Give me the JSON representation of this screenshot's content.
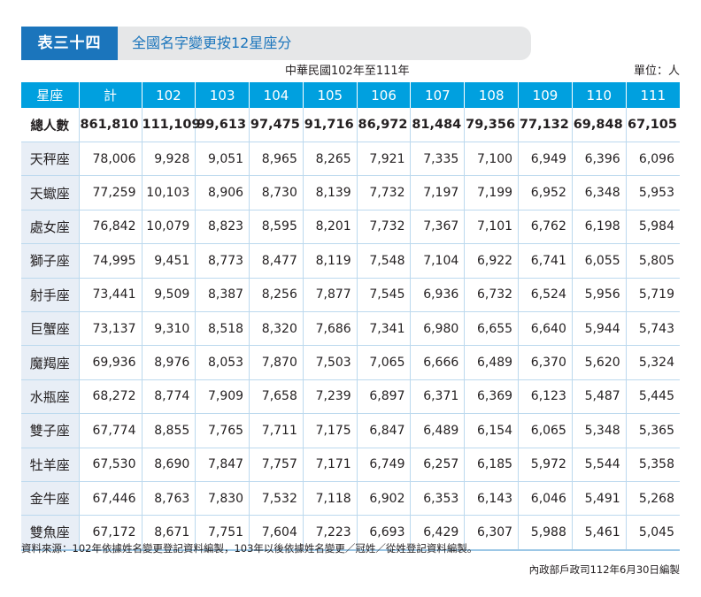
{
  "header": {
    "table_label": "表三十四",
    "title": "全國名字變更按12星座分",
    "subtitle": "中華民國102年至111年",
    "unit": "單位：人"
  },
  "colors": {
    "accent_blue": "#1b75bc",
    "header_cyan": "#00a0df",
    "row_label_bg": "#e8eef6",
    "title_bar_bg": "#e6e7e8"
  },
  "table": {
    "columns": [
      "星座",
      "計",
      "102",
      "103",
      "104",
      "105",
      "106",
      "107",
      "108",
      "109",
      "110",
      "111"
    ],
    "total_row": {
      "label": "總人數",
      "values": [
        "861,810",
        "111,109",
        "99,613",
        "97,475",
        "91,716",
        "86,972",
        "81,484",
        "79,356",
        "77,132",
        "69,848",
        "67,105"
      ]
    },
    "rows": [
      {
        "label": "天秤座",
        "values": [
          "78,006",
          "9,928",
          "9,051",
          "8,965",
          "8,265",
          "7,921",
          "7,335",
          "7,100",
          "6,949",
          "6,396",
          "6,096"
        ]
      },
      {
        "label": "天蠍座",
        "values": [
          "77,259",
          "10,103",
          "8,906",
          "8,730",
          "8,139",
          "7,732",
          "7,197",
          "7,199",
          "6,952",
          "6,348",
          "5,953"
        ]
      },
      {
        "label": "處女座",
        "values": [
          "76,842",
          "10,079",
          "8,823",
          "8,595",
          "8,201",
          "7,732",
          "7,367",
          "7,101",
          "6,762",
          "6,198",
          "5,984"
        ]
      },
      {
        "label": "獅子座",
        "values": [
          "74,995",
          "9,451",
          "8,773",
          "8,477",
          "8,119",
          "7,548",
          "7,104",
          "6,922",
          "6,741",
          "6,055",
          "5,805"
        ]
      },
      {
        "label": "射手座",
        "values": [
          "73,441",
          "9,509",
          "8,387",
          "8,256",
          "7,877",
          "7,545",
          "6,936",
          "6,732",
          "6,524",
          "5,956",
          "5,719"
        ]
      },
      {
        "label": "巨蟹座",
        "values": [
          "73,137",
          "9,310",
          "8,518",
          "8,320",
          "7,686",
          "7,341",
          "6,980",
          "6,655",
          "6,640",
          "5,944",
          "5,743"
        ]
      },
      {
        "label": "魔羯座",
        "values": [
          "69,936",
          "8,976",
          "8,053",
          "7,870",
          "7,503",
          "7,065",
          "6,666",
          "6,489",
          "6,370",
          "5,620",
          "5,324"
        ]
      },
      {
        "label": "水瓶座",
        "values": [
          "68,272",
          "8,774",
          "7,909",
          "7,658",
          "7,239",
          "6,897",
          "6,371",
          "6,369",
          "6,123",
          "5,487",
          "5,445"
        ]
      },
      {
        "label": "雙子座",
        "values": [
          "67,774",
          "8,855",
          "7,765",
          "7,711",
          "7,175",
          "6,847",
          "6,489",
          "6,154",
          "6,065",
          "5,348",
          "5,365"
        ]
      },
      {
        "label": "牡羊座",
        "values": [
          "67,530",
          "8,690",
          "7,847",
          "7,757",
          "7,171",
          "6,749",
          "6,257",
          "6,185",
          "5,972",
          "5,544",
          "5,358"
        ]
      },
      {
        "label": "金牛座",
        "values": [
          "67,446",
          "8,763",
          "7,830",
          "7,532",
          "7,118",
          "6,902",
          "6,353",
          "6,143",
          "6,046",
          "5,491",
          "5,268"
        ]
      },
      {
        "label": "雙魚座",
        "values": [
          "67,172",
          "8,671",
          "7,751",
          "7,604",
          "7,223",
          "6,693",
          "6,429",
          "6,307",
          "5,988",
          "5,461",
          "5,045"
        ]
      }
    ]
  },
  "footer": {
    "source_note": "資料來源：102年依據姓名變更登記資料編製，103年以後依據姓名變更／冠姓／從姓登記資料編製。",
    "credit": "內政部戶政司112年6月30日編製"
  }
}
